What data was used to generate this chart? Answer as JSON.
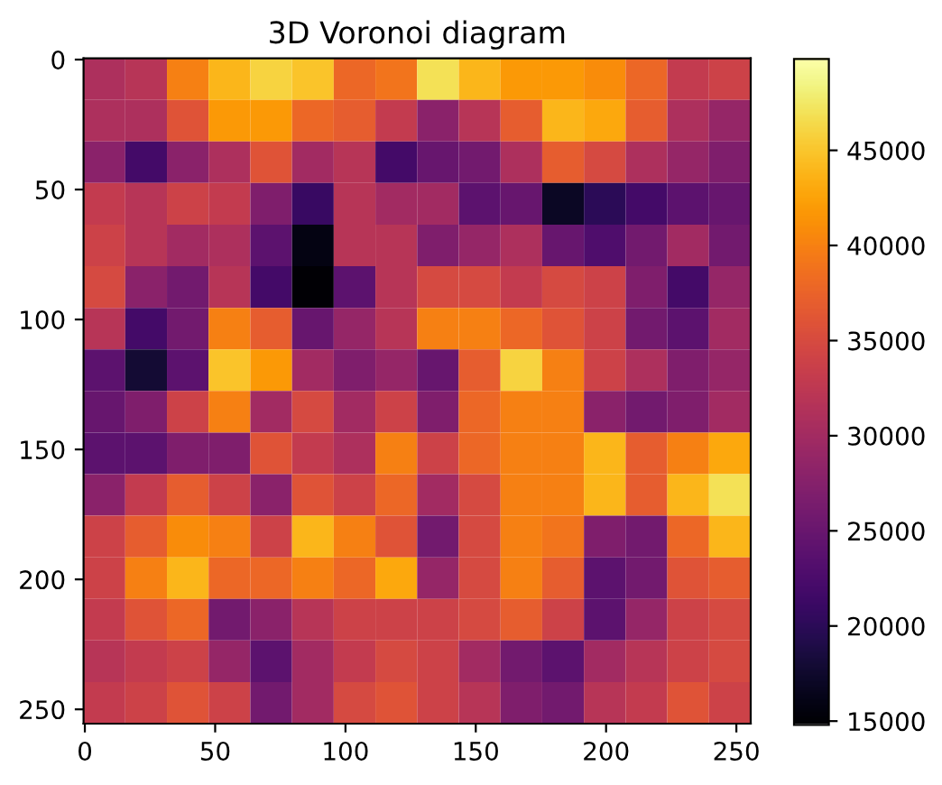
{
  "chart_data": {
    "type": "heatmap",
    "title": "3D Voronoi diagram",
    "x": [
      7.5,
      23.5,
      39.5,
      55.5,
      71.5,
      87.5,
      103.5,
      119.5,
      135.5,
      151.5,
      167.5,
      183.5,
      199.5,
      215.5,
      231.5,
      247.5
    ],
    "y": [
      7.5,
      23.5,
      39.5,
      55.5,
      71.5,
      87.5,
      103.5,
      119.5,
      135.5,
      151.5,
      167.5,
      183.5,
      199.5,
      215.5,
      231.5,
      247.5
    ],
    "cells": [
      [
        31000,
        32000,
        40000,
        44000,
        46000,
        45000,
        38000,
        39000,
        47000,
        44000,
        42000,
        42000,
        41000,
        38000,
        33000,
        34000
      ],
      [
        31000,
        31000,
        36000,
        42000,
        42000,
        38000,
        37000,
        33000,
        28000,
        32000,
        37000,
        44000,
        43000,
        37000,
        31000,
        29000
      ],
      [
        28000,
        22000,
        28000,
        31000,
        36000,
        30000,
        32000,
        22000,
        25000,
        26000,
        31000,
        37000,
        35000,
        31000,
        29000,
        27000
      ],
      [
        33000,
        32000,
        34000,
        33000,
        27000,
        21000,
        32000,
        30000,
        30000,
        24000,
        25000,
        17000,
        20000,
        22000,
        24000,
        25000
      ],
      [
        34000,
        32000,
        30000,
        31000,
        24000,
        16000,
        32000,
        32000,
        27000,
        29000,
        31000,
        25000,
        23000,
        26000,
        30000,
        26000
      ],
      [
        35000,
        28000,
        26000,
        32000,
        22000,
        15000,
        24000,
        32000,
        35000,
        35000,
        33000,
        35000,
        34000,
        27000,
        22000,
        29000
      ],
      [
        32000,
        22000,
        26000,
        40000,
        37000,
        25000,
        29000,
        32000,
        40000,
        40000,
        38000,
        36000,
        34000,
        26000,
        24000,
        30000
      ],
      [
        24000,
        18000,
        24000,
        45000,
        42000,
        30000,
        27000,
        29000,
        25000,
        37000,
        46000,
        40000,
        34000,
        31000,
        27000,
        29000
      ],
      [
        25000,
        27000,
        34000,
        40000,
        30000,
        35000,
        30000,
        34000,
        27000,
        38000,
        40000,
        40000,
        28000,
        26000,
        27000,
        30000
      ],
      [
        24000,
        24000,
        27000,
        27000,
        36000,
        33000,
        31000,
        40000,
        34000,
        38000,
        40000,
        40000,
        44000,
        37000,
        40000,
        43000
      ],
      [
        28000,
        33000,
        37000,
        34000,
        28000,
        36000,
        34000,
        38000,
        30000,
        35000,
        40000,
        40000,
        44000,
        37000,
        44000,
        47000
      ],
      [
        34000,
        37000,
        41000,
        40000,
        34000,
        44000,
        40000,
        36000,
        26000,
        35000,
        40000,
        39000,
        27000,
        26000,
        38000,
        44000
      ],
      [
        34000,
        40000,
        44000,
        38000,
        38000,
        40000,
        38000,
        43000,
        29000,
        35000,
        40000,
        37000,
        24000,
        26000,
        36000,
        37000
      ],
      [
        33000,
        36000,
        38000,
        26000,
        28000,
        32000,
        34000,
        34000,
        34000,
        35000,
        37000,
        34000,
        24000,
        29000,
        34000,
        35000
      ],
      [
        32000,
        33000,
        34000,
        29000,
        24000,
        30000,
        33000,
        35000,
        34000,
        30000,
        26000,
        24000,
        30000,
        32000,
        34000,
        35000
      ],
      [
        33000,
        34000,
        36000,
        34000,
        26000,
        30000,
        35000,
        36000,
        34000,
        32000,
        27000,
        26000,
        32000,
        33000,
        36000,
        34000
      ]
    ],
    "xlim": [
      -0.5,
      255.5
    ],
    "ylim": [
      255.5,
      -0.5
    ],
    "xticks": [
      0,
      50,
      100,
      150,
      200,
      250
    ],
    "yticks": [
      0,
      50,
      100,
      150,
      200,
      250
    ],
    "clim": [
      14800,
      49800
    ],
    "cticks": [
      15000,
      20000,
      25000,
      30000,
      35000,
      40000,
      45000
    ]
  }
}
